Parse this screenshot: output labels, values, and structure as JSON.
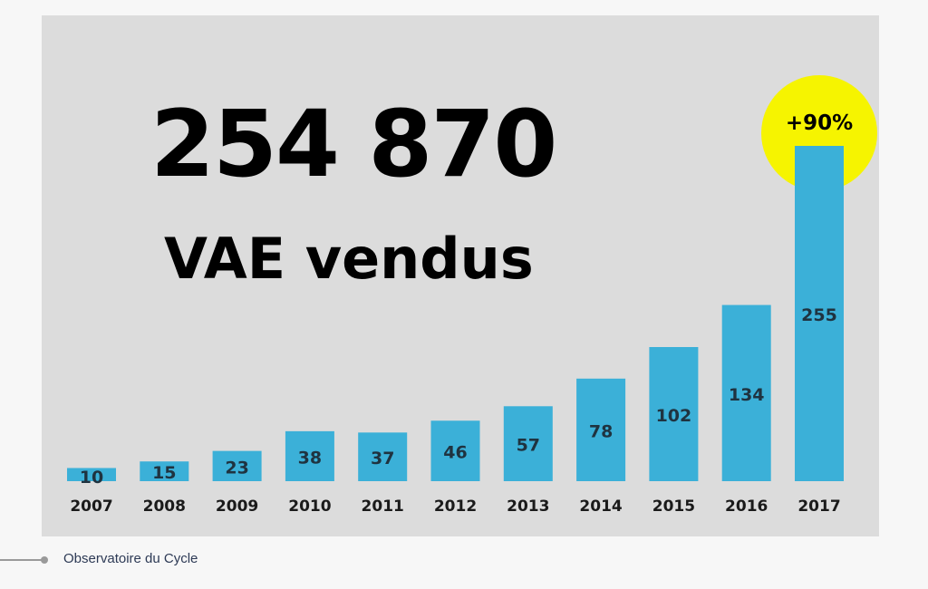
{
  "headline": {
    "value": "254 870",
    "label": "VAE vendus"
  },
  "source": "Observatoire du Cycle",
  "colors": {
    "bar": "#3bb0d8",
    "panel": "#dcdcdc",
    "highlight": "#f6f400",
    "text": "#1a1a1a"
  },
  "chart_data": {
    "type": "bar",
    "title": "",
    "xlabel": "",
    "ylabel": "",
    "categories": [
      "2007",
      "2008",
      "2009",
      "2010",
      "2011",
      "2012",
      "2013",
      "2014",
      "2015",
      "2016",
      "2017"
    ],
    "values": [
      10,
      15,
      23,
      38,
      37,
      46,
      57,
      78,
      102,
      134,
      255
    ],
    "data_labels": [
      "10",
      "15",
      "23",
      "38",
      "37",
      "46",
      "57",
      "78",
      "102",
      "134",
      "255"
    ],
    "ylim": [
      0,
      260
    ],
    "grid": false,
    "legend": "none",
    "annotation": {
      "text": "+90%",
      "category": "2017",
      "shape": "yellow-circle"
    }
  }
}
